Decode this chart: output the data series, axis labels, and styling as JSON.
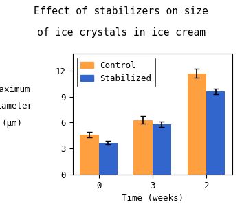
{
  "title_line1": "Effect of stabilizers on size",
  "title_line2": "of ice crystals in ice cream",
  "xlabel": "Time (weeks)",
  "ylabel_line1": "Maximum",
  "ylabel_line2": "Diameter",
  "ylabel_line3": "(μm)",
  "categories": [
    "0",
    "3",
    "2"
  ],
  "control_values": [
    4.6,
    6.3,
    11.7
  ],
  "stabilized_values": [
    3.7,
    5.8,
    9.6
  ],
  "control_errors": [
    0.3,
    0.45,
    0.55
  ],
  "stabilized_errors": [
    0.2,
    0.28,
    0.32
  ],
  "control_color": "#FFA040",
  "stabilized_color": "#3366CC",
  "ylim": [
    0,
    14
  ],
  "yticks": [
    0,
    3,
    6,
    9,
    12
  ],
  "bar_width": 0.35,
  "legend_labels": [
    "Control",
    "Stabilized"
  ],
  "title_fontsize": 10.5,
  "axis_fontsize": 9,
  "tick_fontsize": 9,
  "legend_fontsize": 9
}
